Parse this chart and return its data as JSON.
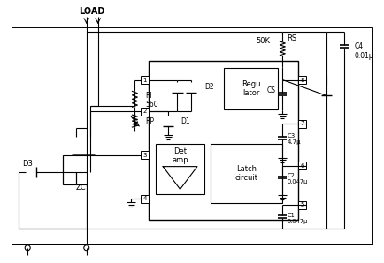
{
  "bg_color": "#ffffff",
  "load_label": "LOAD",
  "zct_label": "ZCT",
  "d3_label": "D3",
  "ri_label": "RI\n560",
  "rp_label": "RP",
  "d1_label": "D1",
  "d2_label": "D2",
  "det_amp_label": "Det\namp",
  "regulator_label": "Regu\nlator",
  "latch_label": "Latch\ncircuit",
  "rs_label": "RS",
  "r50k_label": "50K",
  "cs_label": "CS",
  "c1_label": "C1\n0.047μ",
  "c2_label": "C2\n0.047μ",
  "c3_label": "C3\n4.7μ",
  "c4_label": "C4\n0.01μ"
}
